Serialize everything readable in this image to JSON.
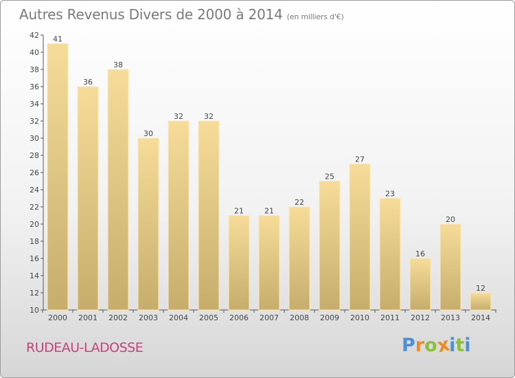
{
  "header": {
    "title": "Autres Revenus Divers de 2000 à 2014",
    "subtitle": "(en milliers d'€)"
  },
  "footer": {
    "place": "RUDEAU-LADOSSE",
    "brand": "Proxiti"
  },
  "colors": {
    "bar_top": "#f6dc98",
    "bar_bottom": "#c7ad6c",
    "place": "#c8407a",
    "title": "#7a7a7a",
    "brand_letters": [
      "#4e8fd6",
      "#f08a1c",
      "#8cbf3c",
      "#f08a1c",
      "#4e8fd6",
      "#8cbf3c",
      "#4e8fd6"
    ]
  },
  "chart_data": {
    "type": "bar",
    "categories": [
      "2000",
      "2001",
      "2002",
      "2003",
      "2004",
      "2005",
      "2006",
      "2007",
      "2008",
      "2009",
      "2010",
      "2011",
      "2012",
      "2013",
      "2014"
    ],
    "values": [
      41,
      36,
      38,
      30,
      32,
      32,
      21,
      21,
      22,
      25,
      27,
      23,
      16,
      20,
      12
    ],
    "ylim": [
      10,
      42
    ],
    "yticks": [
      10,
      12,
      14,
      16,
      18,
      20,
      22,
      24,
      26,
      28,
      30,
      32,
      34,
      36,
      38,
      40,
      42
    ],
    "grid": false,
    "data_labels": true
  }
}
